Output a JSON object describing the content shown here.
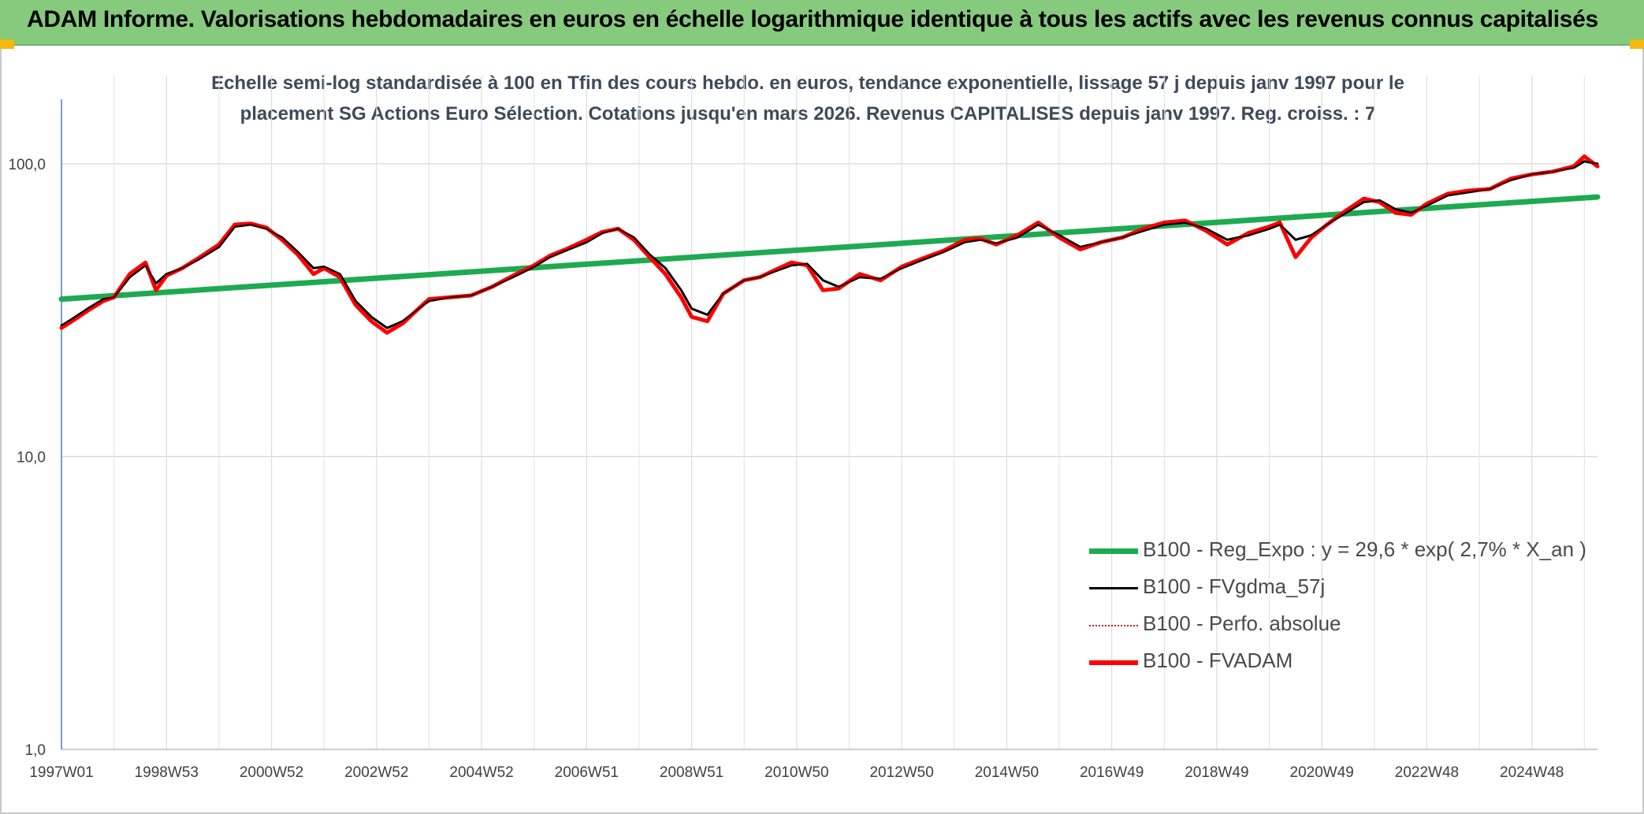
{
  "header": {
    "title": "ADAM Informe. Valorisations hebdomadaires en euros en échelle logarithmique identique à tous les actifs avec les revenus connus capitalisés"
  },
  "chart_data": {
    "type": "line",
    "subtitle_line1": "Echelle semi-log standardisée à 100 en Tfin des cours hebdo. en euros, tendance exponentielle, lissage 57 j depuis janv 1997 pour le",
    "subtitle_line2": "placement SG Actions Euro Sélection. Cotations jusqu'en mars 2026. Revenus CAPITALISES depuis janv 1997. Reg. croiss. : 7",
    "y_scale": "log",
    "ylim": [
      1,
      200
    ],
    "xlim": [
      1997.0,
      2026.25
    ],
    "y_ticks": [
      {
        "value": 1,
        "label": "1,0"
      },
      {
        "value": 10,
        "label": "10,0"
      },
      {
        "value": 100,
        "label": "100,0"
      }
    ],
    "x_ticks": [
      {
        "value": 1997.0,
        "label": "1997W01"
      },
      {
        "value": 1999.0,
        "label": "1998W53"
      },
      {
        "value": 2001.0,
        "label": "2000W52"
      },
      {
        "value": 2003.0,
        "label": "2002W52"
      },
      {
        "value": 2005.0,
        "label": "2004W52"
      },
      {
        "value": 2007.0,
        "label": "2006W51"
      },
      {
        "value": 2009.0,
        "label": "2008W51"
      },
      {
        "value": 2011.0,
        "label": "2010W50"
      },
      {
        "value": 2013.0,
        "label": "2012W50"
      },
      {
        "value": 2015.0,
        "label": "2014W50"
      },
      {
        "value": 2017.0,
        "label": "2016W49"
      },
      {
        "value": 2019.0,
        "label": "2018W49"
      },
      {
        "value": 2021.0,
        "label": "2020W49"
      },
      {
        "value": 2023.0,
        "label": "2022W48"
      },
      {
        "value": 2025.0,
        "label": "2024W48"
      }
    ],
    "x_minor_gridlines": [
      1998,
      2000,
      2002,
      2004,
      2006,
      2008,
      2010,
      2012,
      2014,
      2016,
      2018,
      2020,
      2022,
      2024,
      2026
    ],
    "grid": true,
    "legend_position": "bottom-right",
    "series": [
      {
        "name": "B100 - Reg_Expo : y = 29,6 * exp( 2,7% *  X_an )",
        "color": "#1eaa50",
        "style": "solid-thick",
        "x": [
          1997.0,
          2026.25
        ],
        "y": [
          34.5,
          77.0
        ]
      },
      {
        "name": "B100 - FVgdma_57j",
        "color": "#000000",
        "style": "solid",
        "x": [
          1997.0,
          1997.2,
          1997.5,
          1997.8,
          1998.0,
          1998.3,
          1998.6,
          1998.8,
          1999.0,
          1999.3,
          1999.6,
          2000.0,
          2000.3,
          2000.6,
          2000.9,
          2001.2,
          2001.5,
          2001.8,
          2002.0,
          2002.3,
          2002.6,
          2002.9,
          2003.2,
          2003.5,
          2003.8,
          2004.0,
          2004.4,
          2004.8,
          2005.2,
          2005.6,
          2006.0,
          2006.3,
          2006.6,
          2007.0,
          2007.3,
          2007.6,
          2007.9,
          2008.2,
          2008.5,
          2008.8,
          2009.0,
          2009.3,
          2009.6,
          2010.0,
          2010.3,
          2010.6,
          2010.9,
          2011.2,
          2011.5,
          2011.8,
          2012.2,
          2012.6,
          2013.0,
          2013.4,
          2013.8,
          2014.2,
          2014.5,
          2014.8,
          2015.2,
          2015.6,
          2016.0,
          2016.4,
          2016.8,
          2017.2,
          2017.6,
          2018.0,
          2018.4,
          2018.8,
          2019.2,
          2019.6,
          2020.0,
          2020.2,
          2020.5,
          2020.8,
          2021.1,
          2021.4,
          2021.8,
          2022.1,
          2022.4,
          2022.7,
          2023.0,
          2023.4,
          2023.8,
          2024.2,
          2024.6,
          2025.0,
          2025.4,
          2025.8,
          2026.0,
          2026.25
        ],
        "y": [
          28.0,
          29.5,
          32.0,
          34.5,
          35.0,
          41.0,
          45.0,
          39.0,
          42.0,
          44.0,
          47.0,
          52.0,
          61.0,
          62.0,
          60.0,
          56.0,
          50.0,
          44.0,
          44.5,
          42.0,
          34.0,
          30.0,
          27.5,
          29.0,
          32.0,
          34.0,
          35.0,
          35.5,
          38.0,
          41.0,
          44.5,
          48.0,
          50.5,
          54.0,
          58.0,
          60.0,
          56.0,
          49.0,
          44.0,
          37.0,
          32.0,
          30.5,
          36.0,
          40.0,
          41.0,
          43.0,
          45.0,
          45.5,
          40.0,
          38.0,
          41.0,
          40.5,
          44.0,
          47.0,
          50.0,
          54.0,
          55.0,
          53.5,
          56.0,
          62.0,
          57.0,
          52.0,
          54.0,
          56.0,
          59.0,
          62.0,
          63.0,
          60.0,
          55.0,
          57.0,
          60.0,
          62.0,
          55.0,
          57.0,
          62.0,
          67.0,
          74.0,
          75.0,
          70.0,
          68.0,
          72.0,
          78.0,
          80.0,
          82.0,
          88.0,
          92.0,
          94.0,
          97.0,
          102.0,
          100.0
        ]
      },
      {
        "name": "B100 - Perfo. absolue",
        "color": "#e01010",
        "style": "dotted",
        "x": [],
        "y": []
      },
      {
        "name": "B100 - FVADAM",
        "color": "#ff0000",
        "style": "solid-thick",
        "x": [
          1997.0,
          1997.2,
          1997.5,
          1997.8,
          1998.0,
          1998.3,
          1998.6,
          1998.8,
          1999.0,
          1999.3,
          1999.6,
          2000.0,
          2000.3,
          2000.6,
          2000.9,
          2001.2,
          2001.5,
          2001.8,
          2002.0,
          2002.3,
          2002.6,
          2002.9,
          2003.2,
          2003.5,
          2003.8,
          2004.0,
          2004.4,
          2004.8,
          2005.2,
          2005.6,
          2006.0,
          2006.3,
          2006.6,
          2007.0,
          2007.3,
          2007.6,
          2007.9,
          2008.2,
          2008.5,
          2008.8,
          2009.0,
          2009.3,
          2009.6,
          2010.0,
          2010.3,
          2010.6,
          2010.9,
          2011.2,
          2011.5,
          2011.8,
          2012.2,
          2012.6,
          2013.0,
          2013.4,
          2013.8,
          2014.2,
          2014.5,
          2014.8,
          2015.2,
          2015.6,
          2016.0,
          2016.4,
          2016.8,
          2017.2,
          2017.6,
          2018.0,
          2018.4,
          2018.8,
          2019.2,
          2019.6,
          2020.0,
          2020.2,
          2020.5,
          2020.8,
          2021.1,
          2021.4,
          2021.8,
          2022.1,
          2022.4,
          2022.7,
          2023.0,
          2023.4,
          2023.8,
          2024.2,
          2024.6,
          2025.0,
          2025.4,
          2025.8,
          2026.0,
          2026.25
        ],
        "y": [
          27.5,
          29.0,
          31.5,
          34.0,
          35.0,
          42.0,
          46.0,
          37.0,
          41.5,
          44.0,
          47.5,
          53.0,
          62.0,
          62.5,
          60.5,
          55.0,
          49.0,
          42.0,
          44.0,
          41.0,
          33.0,
          29.0,
          26.5,
          28.5,
          32.0,
          34.5,
          35.0,
          35.5,
          38.0,
          41.5,
          45.0,
          48.5,
          51.0,
          55.0,
          58.5,
          60.0,
          55.0,
          48.0,
          42.0,
          35.0,
          30.0,
          29.0,
          36.0,
          40.0,
          41.0,
          43.5,
          46.0,
          45.0,
          37.0,
          37.5,
          42.0,
          40.0,
          44.5,
          47.5,
          50.5,
          55.0,
          55.5,
          53.0,
          57.0,
          63.0,
          56.0,
          51.0,
          54.0,
          56.0,
          60.0,
          63.0,
          64.0,
          59.0,
          53.0,
          58.0,
          61.0,
          63.0,
          48.0,
          56.0,
          62.0,
          68.0,
          76.0,
          74.0,
          68.0,
          67.0,
          73.0,
          79.0,
          81.0,
          82.0,
          89.0,
          92.0,
          94.0,
          98.0,
          106.0,
          98.0
        ]
      }
    ]
  }
}
